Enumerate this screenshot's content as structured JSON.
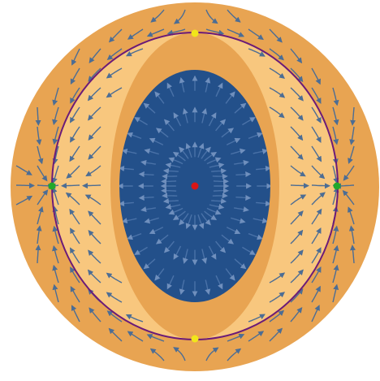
{
  "colors": {
    "outer_region": "#E8A452",
    "light_band": "#F8C77E",
    "inner_region": "#23508A",
    "arrows_inner": "#4A72A8",
    "arrows_outer": "#4C6D94",
    "limit_cycle": "#6B1B78",
    "stable_point": "#22A82A",
    "saddle_point": "#F1E61A",
    "center_point": "#D81616"
  },
  "equilibria": [
    {
      "kind": "center",
      "color_key": "center_point"
    },
    {
      "kind": "left",
      "color_key": "stable_point"
    },
    {
      "kind": "right",
      "color_key": "stable_point"
    },
    {
      "kind": "top",
      "color_key": "saddle_point"
    },
    {
      "kind": "bottom",
      "color_key": "saddle_point"
    }
  ]
}
